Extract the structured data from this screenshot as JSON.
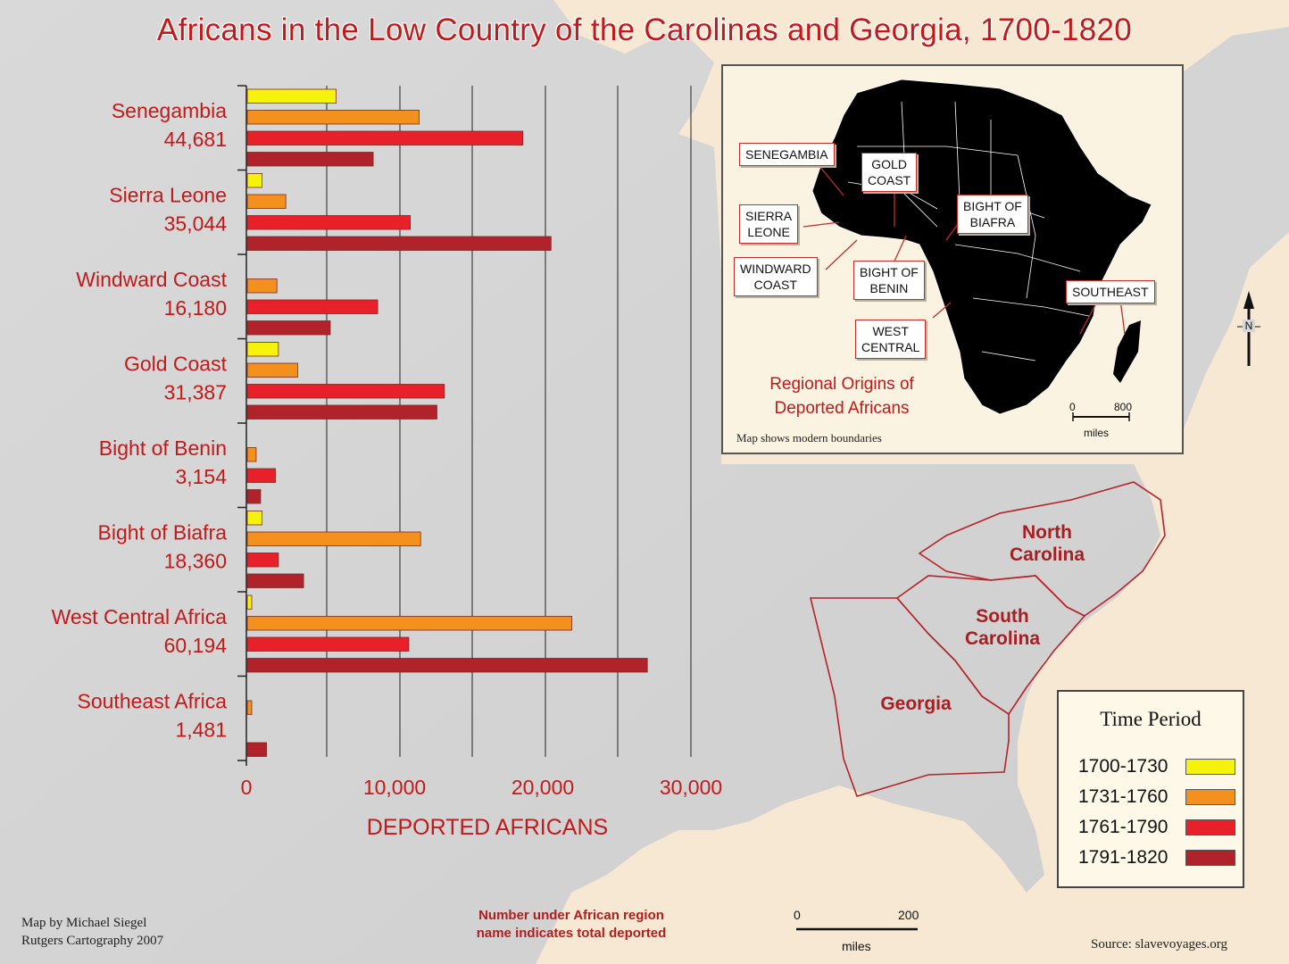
{
  "title": "Africans in the Low Country of the Carolinas and Georgia, 1700-1820",
  "chart_data": {
    "type": "bar",
    "orientation": "horizontal",
    "xlabel": "DEPORTED AFRICANS",
    "xlim": [
      0,
      30000
    ],
    "xticks": [
      "0",
      "10,000",
      "20,000",
      "30,000"
    ],
    "categories": [
      "Senegambia",
      "Sierra Leone",
      "Windward Coast",
      "Gold Coast",
      "Bight of Benin",
      "Bight of Biafra",
      "West Central Africa",
      "Southeast Africa"
    ],
    "totals": [
      "44,681",
      "35,044",
      "16,180",
      "31,387",
      "3,154",
      "18,360",
      "60,194",
      "1,481"
    ],
    "series": [
      {
        "name": "1700-1730",
        "color": "#f5f20c",
        "values": [
          6000,
          1000,
          0,
          2100,
          0,
          1000,
          300,
          0
        ]
      },
      {
        "name": "1731-1760",
        "color": "#f4901e",
        "values": [
          11600,
          2600,
          2000,
          3400,
          600,
          11700,
          21900,
          300
        ]
      },
      {
        "name": "1761-1790",
        "color": "#e8202a",
        "values": [
          18600,
          11000,
          8800,
          13300,
          1900,
          2100,
          10900,
          0
        ]
      },
      {
        "name": "1791-1820",
        "color": "#b0232b",
        "values": [
          8500,
          20500,
          5600,
          12800,
          900,
          3800,
          27000,
          1300
        ]
      }
    ],
    "grid": true,
    "legend": "bottom-right"
  },
  "states": {
    "north_carolina": [
      "North",
      "Carolina"
    ],
    "south_carolina": [
      "South",
      "Carolina"
    ],
    "georgia": "Georgia"
  },
  "inset": {
    "title_lines": [
      "Regional Origins of",
      "Deported Africans"
    ],
    "note": "Map shows modern boundaries",
    "callouts": {
      "senegambia": "SENEGAMBIA",
      "gold_coast": [
        "GOLD",
        "COAST"
      ],
      "sierra_leone": [
        "SIERRA",
        "LEONE"
      ],
      "bight_biafra": [
        "BIGHT OF",
        "BIAFRA"
      ],
      "windward": [
        "WINDWARD",
        "COAST"
      ],
      "bight_benin": [
        "BIGHT OF",
        "BENIN"
      ],
      "southeast": "SOUTHEAST",
      "west_central": [
        "WEST",
        "CENTRAL"
      ]
    },
    "scale": {
      "zero": "0",
      "max": "800",
      "unit": "miles"
    }
  },
  "legend": {
    "title": "Time Period",
    "items": [
      {
        "label": "1700-1730",
        "color": "#f5f20c"
      },
      {
        "label": "1731-1760",
        "color": "#f4901e"
      },
      {
        "label": "1761-1790",
        "color": "#e8202a"
      },
      {
        "label": "1791-1820",
        "color": "#b0232b"
      }
    ]
  },
  "credits": [
    "Map by Michael Siegel",
    "Rutgers Cartography 2007"
  ],
  "note": [
    "Number under African region",
    "name indicates total deported"
  ],
  "map_scale": {
    "zero": "0",
    "max": "200",
    "unit": "miles"
  },
  "compass": "N",
  "source": "Source: slavevoyages.org"
}
